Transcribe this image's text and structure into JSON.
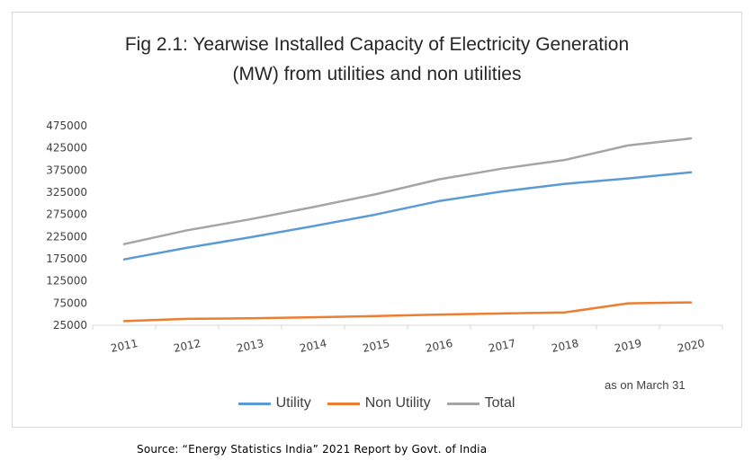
{
  "chart_data": {
    "type": "line",
    "title": "Fig 2.1: Yearwise Installed Capacity of Electricity Generation (MW) from utilities and non utilities",
    "title_lines": [
      "Fig 2.1: Yearwise Installed Capacity of Electricity Generation",
      "(MW) from utilities and non utilities"
    ],
    "categories": [
      "2011",
      "2012",
      "2013",
      "2014",
      "2015",
      "2016",
      "2017",
      "2018",
      "2019",
      "2020"
    ],
    "series": [
      {
        "name": "Utility",
        "color": "#5b9bd5",
        "values": [
          173626,
          199877,
          223344,
          248510,
          274904,
          305162,
          326833,
          344002,
          356100,
          370106
        ]
      },
      {
        "name": "Non Utility",
        "color": "#ed7d31",
        "values": [
          34444,
          39375,
          40726,
          43000,
          45800,
          49000,
          51500,
          54000,
          74500,
          76500
        ]
      },
      {
        "name": "Total",
        "color": "#a5a5a5",
        "values": [
          208070,
          239252,
          264070,
          291510,
          320704,
          354162,
          378333,
          398002,
          430600,
          446606
        ]
      }
    ],
    "y_ticks": [
      "475000",
      "425000",
      "375000",
      "325000",
      "275000",
      "225000",
      "175000",
      "125000",
      "75000",
      "25000"
    ],
    "ylim": [
      25000,
      475000
    ],
    "xlabel": "",
    "ylabel": "",
    "legend_position": "bottom",
    "grid": false,
    "note": "as on March 31"
  },
  "source": "Source: “Energy Statistics India” 2021 Report by Govt. of India"
}
